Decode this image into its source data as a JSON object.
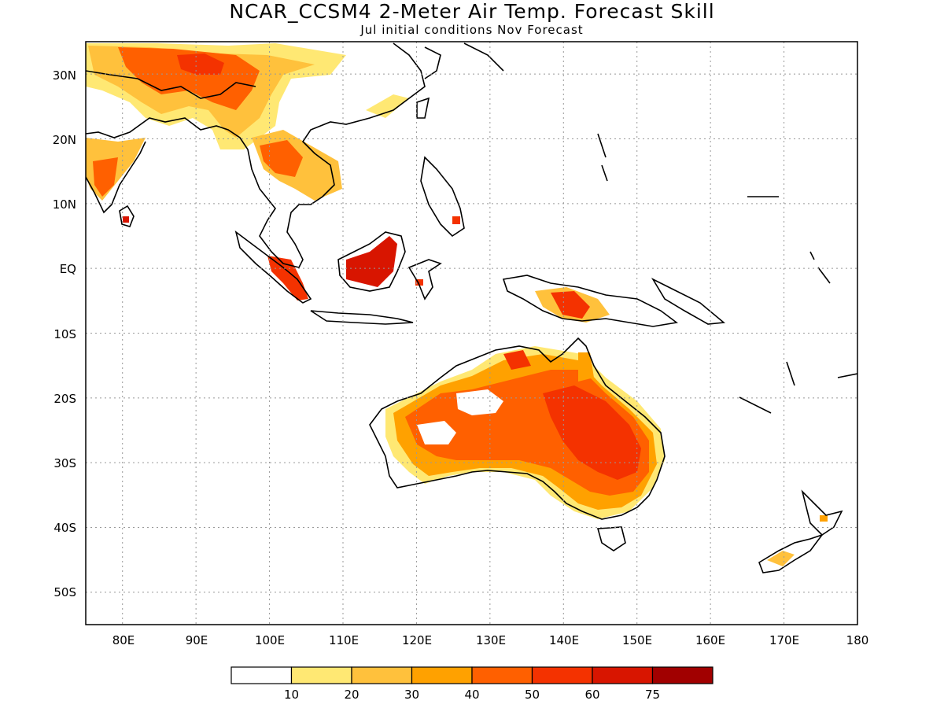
{
  "title": "NCAR_CCSM4 2-Meter Air Temp. Forecast Skill",
  "subtitle": "Jul initial conditions  Nov Forecast",
  "map": {
    "lon_labels": [
      "80E",
      "90E",
      "100E",
      "110E",
      "120E",
      "130E",
      "140E",
      "150E",
      "160E",
      "170E",
      "180"
    ],
    "lat_labels": [
      "30N",
      "20N",
      "10N",
      "EQ",
      "10S",
      "20S",
      "30S",
      "40S",
      "50S"
    ],
    "lon_range": [
      75,
      180
    ],
    "lat_range": [
      -55,
      35
    ],
    "grid": "dotted"
  },
  "colorbar": {
    "colors": [
      "#ffffff",
      "#ffe873",
      "#ffc13c",
      "#ffa100",
      "#ff6000",
      "#f43200",
      "#d81500",
      "#a10000"
    ],
    "labels": [
      "10",
      "20",
      "30",
      "40",
      "50",
      "60",
      "75"
    ]
  }
}
